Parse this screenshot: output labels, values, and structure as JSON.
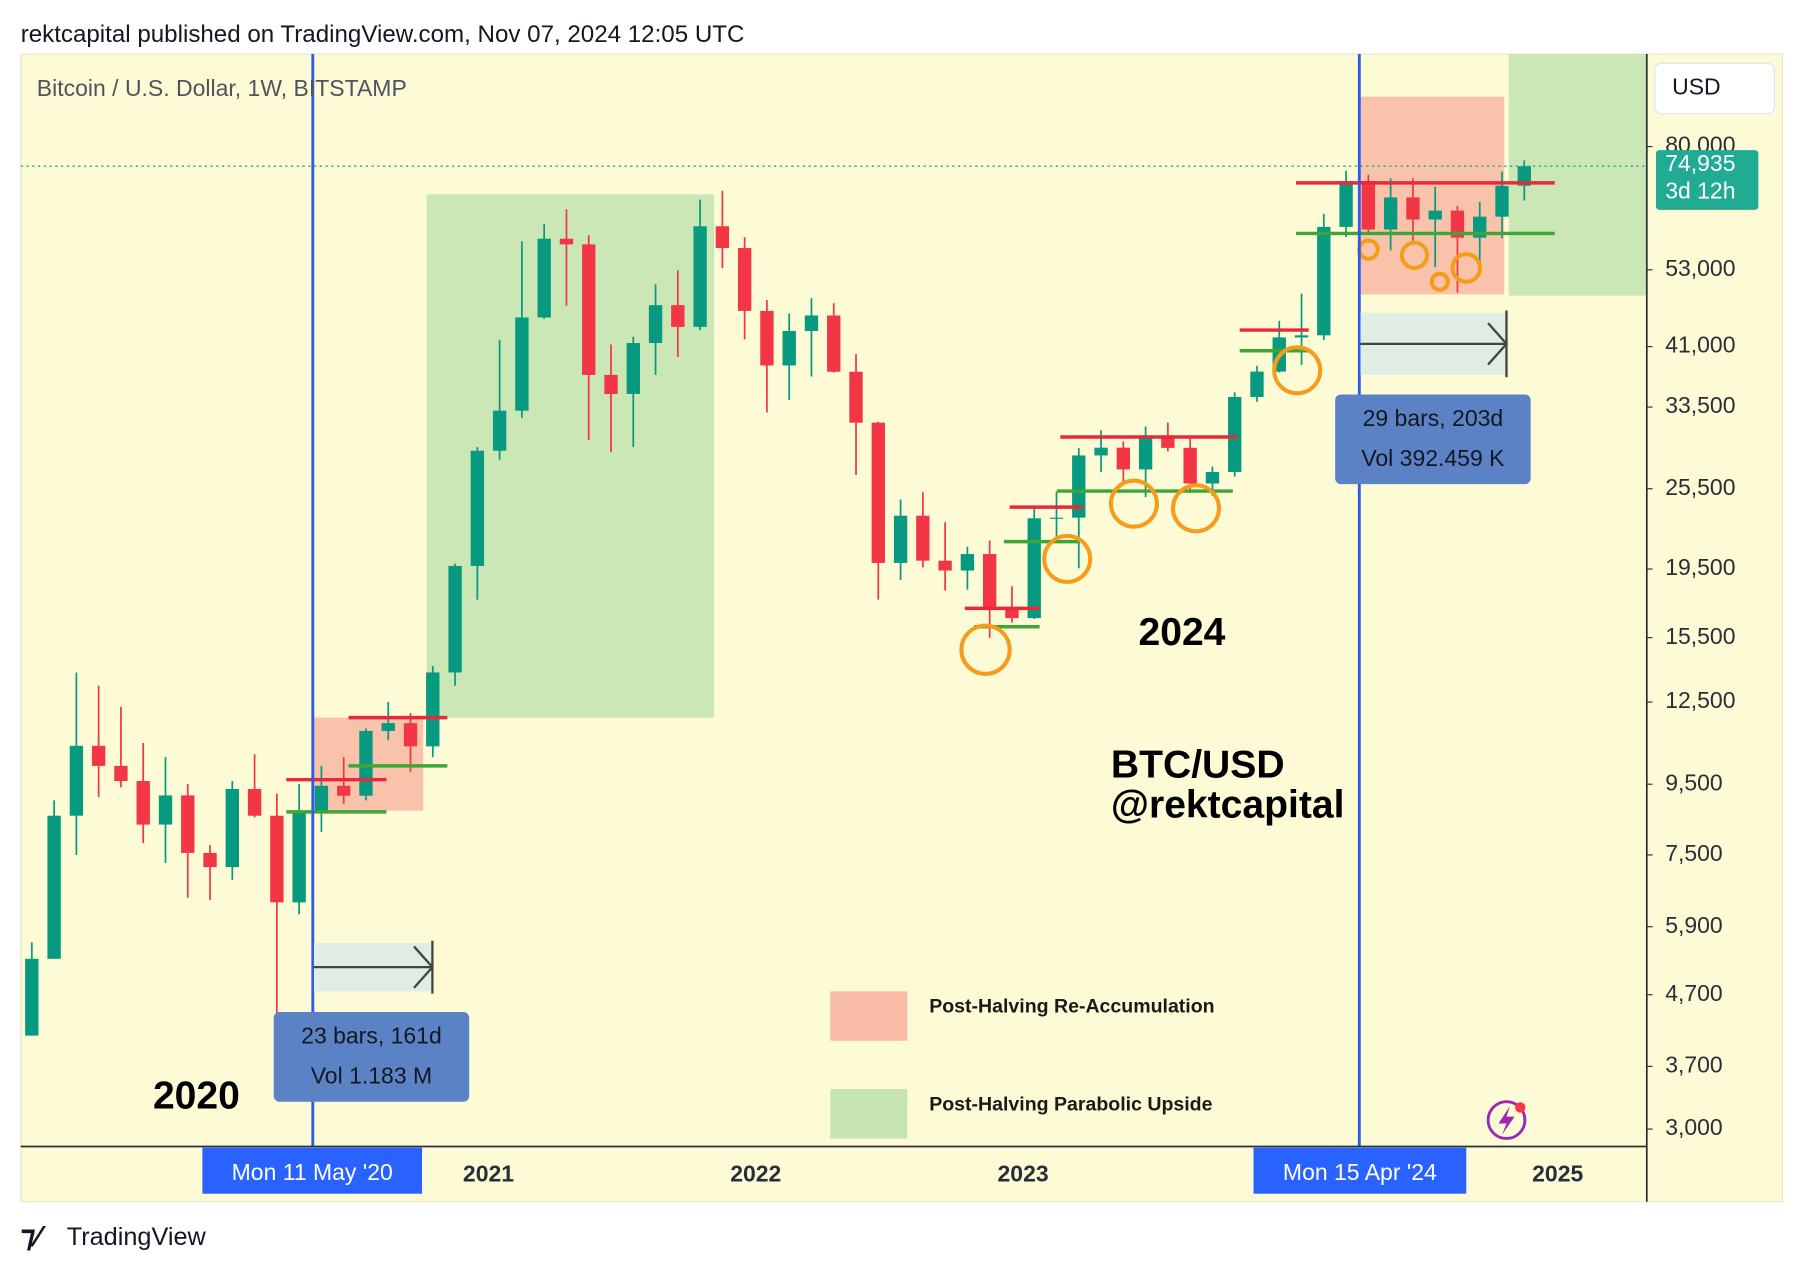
{
  "header": "rektcapital published on TradingView.com, Nov 07, 2024 12:05 UTC",
  "footer": "TradingView",
  "chart_data": {
    "type": "candlestick",
    "title": "Bitcoin / U.S. Dollar, 1W, BITSTAMP",
    "currency": "USD",
    "up_color": "#089981",
    "down_color": "#f23645",
    "log_scale": true,
    "grid": false,
    "categories": [
      null,
      null,
      null,
      null,
      null,
      null,
      null,
      null,
      null,
      null,
      null,
      null,
      null,
      null,
      null,
      null,
      null,
      null,
      null,
      null,
      null,
      "2021",
      null,
      null,
      null,
      null,
      null,
      null,
      null,
      null,
      null,
      null,
      null,
      "2022",
      null,
      null,
      null,
      null,
      null,
      null,
      null,
      null,
      null,
      null,
      null,
      "2023",
      null,
      null,
      null,
      null,
      null,
      null,
      null,
      null,
      null,
      null,
      null,
      null,
      null,
      null,
      null,
      null,
      null,
      null,
      null,
      null,
      null,
      null,
      null,
      "2025",
      null,
      null,
      null
    ],
    "open": [
      4100,
      5300,
      8550,
      10800,
      10100,
      9600,
      8300,
      9150,
      7550,
      7200,
      9350,
      8550,
      6400,
      8650,
      9450,
      9140,
      11350,
      11650,
      10780,
      13800,
      19700,
      28950,
      33100,
      45200,
      58800,
      57700,
      37300,
      35000,
      41500,
      47100,
      43800,
      61300,
      57000,
      46200,
      38500,
      43200,
      45500,
      37700,
      31800,
      19900,
      23300,
      20050,
      19400,
      20500,
      17150,
      16550,
      23100,
      23150,
      28500,
      29250,
      27200,
      30480,
      29230,
      25950,
      26970,
      34650,
      37720,
      42280,
      42580,
      61170,
      71300,
      60640,
      67500,
      62700,
      64600,
      59000,
      63300,
      70200,
      null,
      null,
      null,
      null,
      null
    ],
    "high": [
      5600,
      9000,
      13800,
      13200,
      12300,
      10900,
      10400,
      9500,
      7750,
      9600,
      10500,
      9200,
      9500,
      10100,
      10400,
      11450,
      12500,
      12050,
      14100,
      19850,
      29300,
      41950,
      58300,
      61800,
      64900,
      59500,
      41300,
      42400,
      50500,
      52900,
      67000,
      69000,
      59100,
      47900,
      45800,
      48200,
      47400,
      40000,
      31900,
      24600,
      25200,
      22800,
      21000,
      21450,
      18400,
      23950,
      25250,
      29200,
      31000,
      29850,
      31400,
      31800,
      30200,
      27450,
      35200,
      38450,
      44700,
      48950,
      63900,
      73800,
      72800,
      71950,
      71950,
      70000,
      65600,
      66500,
      73600,
      76400,
      null,
      null,
      null,
      null,
      null
    ],
    "low": [
      4100,
      5300,
      7500,
      9100,
      9400,
      7800,
      7300,
      6500,
      6450,
      6900,
      8500,
      3850,
      6150,
      8100,
      8900,
      9000,
      11000,
      9900,
      10400,
      13200,
      17600,
      28100,
      32300,
      45000,
      47000,
      30000,
      28800,
      29300,
      37300,
      39600,
      43300,
      53300,
      42000,
      32900,
      34300,
      37100,
      37600,
      26700,
      17600,
      18800,
      19600,
      18150,
      18200,
      15500,
      16300,
      16500,
      21400,
      19550,
      26950,
      25800,
      24800,
      28900,
      25150,
      24900,
      26550,
      34100,
      37600,
      38550,
      41900,
      59100,
      59600,
      56550,
      58400,
      53500,
      49100,
      52600,
      58900,
      66800,
      null,
      null,
      null,
      null,
      null
    ],
    "close": [
      5300,
      8550,
      10800,
      10100,
      9600,
      8300,
      9150,
      7550,
      7200,
      9350,
      8550,
      6400,
      8650,
      9450,
      9140,
      11350,
      11650,
      10780,
      13800,
      19700,
      28950,
      33100,
      45200,
      58800,
      57700,
      37300,
      35000,
      41500,
      47100,
      43800,
      61300,
      57000,
      46200,
      38500,
      43200,
      45500,
      37700,
      31800,
      19900,
      23300,
      20050,
      19400,
      20500,
      17150,
      16550,
      23100,
      23150,
      28500,
      29250,
      27200,
      30480,
      29230,
      25950,
      26970,
      34650,
      37720,
      42280,
      42580,
      61170,
      71300,
      60640,
      67500,
      62700,
      64600,
      59000,
      63300,
      70200,
      74935,
      null,
      null,
      null,
      null,
      null
    ],
    "ylim": [
      2830,
      109000
    ],
    "yticks": [
      {
        "value": 3000,
        "label": "3,000"
      },
      {
        "value": 3700,
        "label": "3,700"
      },
      {
        "value": 4700,
        "label": "4,700"
      },
      {
        "value": 5900,
        "label": "5,900"
      },
      {
        "value": 7500,
        "label": "7,500"
      },
      {
        "value": 9500,
        "label": "9,500"
      },
      {
        "value": 12500,
        "label": "12,500"
      },
      {
        "value": 15500,
        "label": "15,500"
      },
      {
        "value": 19500,
        "label": "19,500"
      },
      {
        "value": 25500,
        "label": "25,500"
      },
      {
        "value": 33500,
        "label": "33,500"
      },
      {
        "value": 41000,
        "label": "41,000"
      },
      {
        "value": 53000,
        "label": "53,000"
      },
      {
        "value": 80000,
        "label": "80,000"
      }
    ],
    "last_price": {
      "value": 74935,
      "label": "74,935",
      "countdown": "3d 12h"
    },
    "halvings": [
      "Mon 11 May '20",
      "Mon 15 Apr '24"
    ],
    "measures": [
      {
        "bars": "23 bars, 161d",
        "vol": "Vol 1.183 M"
      },
      {
        "bars": "29 bars, 203d",
        "vol": "Vol 392.459 K"
      }
    ],
    "legend": [
      {
        "label": "Post-Halving Re-Accumulation",
        "color": "#f8bca6"
      },
      {
        "label": "Post-Halving Parabolic Upside",
        "color": "#c5e4b1"
      }
    ],
    "annotations": {
      "cycle_2020": "2020",
      "cycle_2024": "2024",
      "pair": "BTC/USD",
      "handle": "@rektcapital"
    }
  }
}
